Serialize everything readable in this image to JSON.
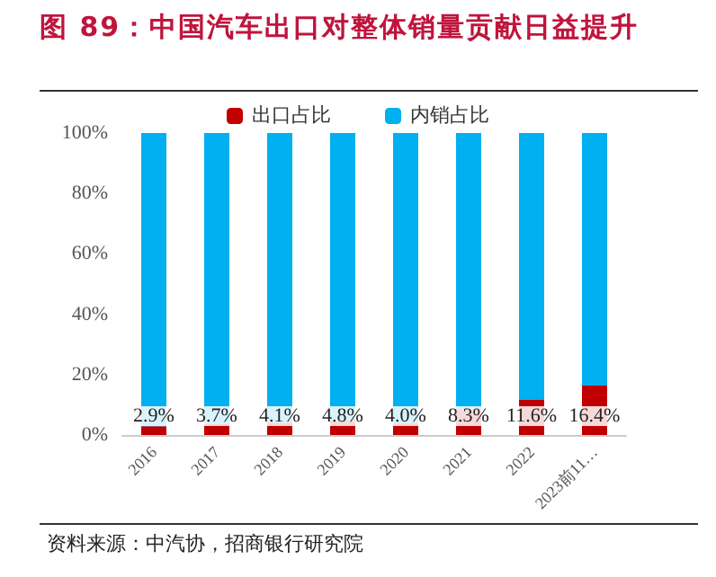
{
  "chart_data": {
    "type": "bar",
    "title": "图 89：中国汽车出口对整体销量贡献日益提升",
    "categories": [
      "2016",
      "2017",
      "2018",
      "2019",
      "2020",
      "2021",
      "2022",
      "2023前11…"
    ],
    "series": [
      {
        "name": "出口占比",
        "color": "#c00000",
        "values": [
          2.9,
          3.7,
          4.1,
          4.8,
          4.0,
          8.3,
          11.6,
          16.4
        ],
        "value_labels": [
          "2.9%",
          "3.7%",
          "4.1%",
          "4.8%",
          "4.0%",
          "8.3%",
          "11.6%",
          "16.4%"
        ]
      },
      {
        "name": "内销占比",
        "color": "#00b0f0",
        "values": [
          97.1,
          96.3,
          95.9,
          95.2,
          96.0,
          91.7,
          88.4,
          83.6
        ]
      }
    ],
    "stacked": true,
    "ylim": [
      0,
      100
    ],
    "yticks": [
      {
        "value": 0,
        "label": "0%"
      },
      {
        "value": 20,
        "label": "20%"
      },
      {
        "value": 40,
        "label": "40%"
      },
      {
        "value": 60,
        "label": "60%"
      },
      {
        "value": 80,
        "label": "80%"
      },
      {
        "value": 100,
        "label": "100%"
      }
    ],
    "grid": false,
    "legend": "top",
    "annotations": [
      "资料来源：中汽协，招商银行研究院"
    ]
  }
}
